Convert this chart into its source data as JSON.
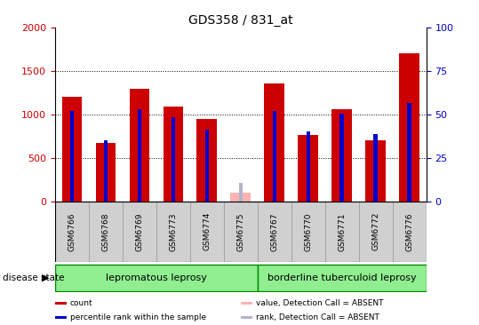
{
  "title": "GDS358 / 831_at",
  "samples": [
    "GSM6766",
    "GSM6768",
    "GSM6769",
    "GSM6773",
    "GSM6774",
    "GSM6775",
    "GSM6767",
    "GSM6770",
    "GSM6771",
    "GSM6772",
    "GSM6776"
  ],
  "count_values": [
    1200,
    670,
    1300,
    1090,
    950,
    0,
    1360,
    770,
    1060,
    700,
    1700
  ],
  "count_absent": [
    0,
    0,
    0,
    0,
    0,
    100,
    0,
    0,
    0,
    0,
    0
  ],
  "percentile_values_left": [
    1040,
    700,
    1060,
    965,
    830,
    0,
    1040,
    810,
    1010,
    780,
    1130
  ],
  "percentile_absent_left": [
    0,
    0,
    0,
    0,
    0,
    215,
    0,
    0,
    0,
    0,
    0
  ],
  "count_color": "#cc0000",
  "percentile_color": "#0000cc",
  "count_absent_color": "#ffb3b3",
  "percentile_absent_color": "#b3b3cc",
  "red_bar_width": 0.6,
  "blue_bar_width": 0.12,
  "ylim_left": [
    0,
    2000
  ],
  "ylim_right": [
    0,
    100
  ],
  "yticks_left": [
    0,
    500,
    1000,
    1500,
    2000
  ],
  "yticks_right": [
    0,
    25,
    50,
    75,
    100
  ],
  "group1_label": "lepromatous leprosy",
  "group2_label": "borderline tuberculoid leprosy",
  "group1_indices": [
    0,
    1,
    2,
    3,
    4,
    5
  ],
  "group2_indices": [
    6,
    7,
    8,
    9,
    10
  ],
  "disease_state_label": "disease state",
  "legend_items": [
    {
      "label": "count",
      "color": "#cc0000"
    },
    {
      "label": "percentile rank within the sample",
      "color": "#0000cc"
    },
    {
      "label": "value, Detection Call = ABSENT",
      "color": "#ffb3b3"
    },
    {
      "label": "rank, Detection Call = ABSENT",
      "color": "#b3b3cc"
    }
  ],
  "background_color": "#ffffff",
  "plot_bg": "#ffffff",
  "ylabel_left_color": "#cc0000",
  "ylabel_right_color": "#0000cc",
  "group_bg_color": "#90EE90",
  "group_edge_color": "#008800",
  "label_bg_color": "#d0d0d0"
}
